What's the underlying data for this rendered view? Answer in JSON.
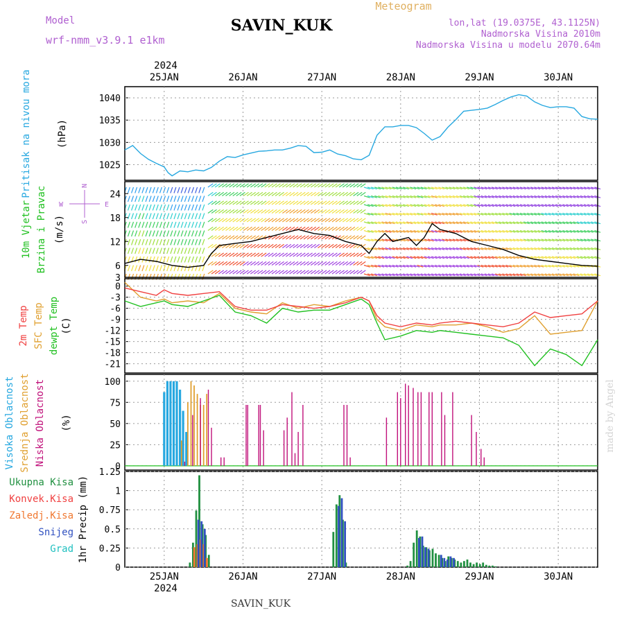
{
  "header": {
    "model_label": "Model",
    "model_name": "wrf-nmm_v3.9.1  e1km",
    "station": "SAVIN_KUK",
    "meteogram": "Meteogram",
    "lonlat": "lon,lat (19.0375E, 43.1125N)",
    "altitude": "Nadmorska Visina 2010m",
    "model_altitude": "Nadmorska Visina u modelu 2070.64m",
    "year": "2024",
    "footer_station": "SAVIN_KUK",
    "credit": "made by Angel"
  },
  "colors": {
    "pressure": "#27a8e0",
    "t2m": "#f04040",
    "tsfc": "#e0a030",
    "dewpt": "#20c020",
    "high_cloud": "#27a8e0",
    "mid_cloud": "#e0a030",
    "low_cloud": "#c0107a",
    "total_precip": "#209040",
    "conv_precip": "#f04040",
    "frz_precip": "#f07830",
    "snow": "#3050c0",
    "grad": "#20c0c0"
  },
  "x_axis": {
    "day_labels": [
      "25JAN",
      "26JAN",
      "27JAN",
      "28JAN",
      "29JAN",
      "30JAN"
    ]
  },
  "panels": {
    "pressure": {
      "label_main": "Pritisak na nivou mora",
      "unit": "(hPa)",
      "ticks": [
        "1025",
        "1030",
        "1035",
        "1040"
      ]
    },
    "wind": {
      "label1": "10m Vjetar",
      "label2": "Brzina i Pravac",
      "unit": "(m/s)",
      "ticks": [
        "3",
        "6",
        "12",
        "18",
        "24"
      ],
      "compass_n": "N",
      "compass_s": "S",
      "compass_w": "W",
      "compass_e": "E"
    },
    "temp": {
      "label1": "2m Temp",
      "label2": "SFC Temp",
      "label3": "dewpt Temp",
      "unit": "(C)",
      "ticks": [
        "0",
        "-3",
        "-6",
        "-9",
        "-12",
        "-15",
        "-18",
        "-21"
      ]
    },
    "cloud": {
      "label1": "Visoka Oblacnost",
      "label2": "Srednja Oblacnost",
      "label3": "Niska Oblacnost",
      "unit": "(%)",
      "ticks": [
        "0",
        "25",
        "50",
        "75",
        "100"
      ]
    },
    "precip": {
      "legend": [
        "Ukupna Kisa",
        "Konvek.Kisa",
        "Zaledj.Kisa",
        "Snijeg",
        "Grad"
      ],
      "unit": "1hr Precip (mm)",
      "ticks": [
        "0",
        "0.25",
        "0.5",
        "0.75",
        "1",
        "1.25"
      ]
    }
  },
  "chart_data": [
    {
      "type": "line",
      "title": "Pritisak na nivou mora",
      "ylabel": "(hPa)",
      "ylim": [
        1021.5,
        1042.5
      ],
      "x_unit": "days from 24JAN 12UTC",
      "series": [
        {
          "name": "Pritisak na nivou mora",
          "x": [
            0,
            0.1,
            0.2,
            0.3,
            0.4,
            0.5,
            0.55,
            0.6,
            0.7,
            0.8,
            0.9,
            1.0,
            1.1,
            1.2,
            1.3,
            1.4,
            1.5,
            1.6,
            1.7,
            1.8,
            1.9,
            2.0,
            2.1,
            2.2,
            2.3,
            2.4,
            2.5,
            2.6,
            2.7,
            2.8,
            2.9,
            3.0,
            3.1,
            3.2,
            3.3,
            3.4,
            3.5,
            3.6,
            3.7,
            3.8,
            3.9,
            4.0,
            4.1,
            4.2,
            4.3,
            4.4,
            4.5,
            4.6,
            4.7,
            4.8,
            4.9,
            5.0,
            5.1,
            5.2,
            5.3,
            5.4,
            5.5,
            5.6,
            5.7,
            5.8,
            5.9,
            6.0
          ],
          "values": [
            1028.3,
            1029.3,
            1027.5,
            1026.2,
            1025.3,
            1024.5,
            1023.2,
            1022.5,
            1023.6,
            1023.4,
            1023.8,
            1023.6,
            1024.4,
            1025.8,
            1026.8,
            1026.6,
            1027.2,
            1027.6,
            1028.0,
            1028.1,
            1028.3,
            1028.3,
            1028.7,
            1029.3,
            1029.1,
            1027.7,
            1027.8,
            1028.3,
            1027.4,
            1027.0,
            1026.3,
            1026.1,
            1027.1,
            1031.6,
            1033.5,
            1033.5,
            1033.8,
            1033.8,
            1033.3,
            1032.0,
            1030.5,
            1031.3,
            1033.4,
            1035.1,
            1037.0,
            1037.2,
            1037.4,
            1037.7,
            1038.5,
            1039.4,
            1040.2,
            1040.7,
            1040.4,
            1039.1,
            1038.3,
            1037.8,
            1038.0,
            1038.0,
            1037.7,
            1035.8,
            1035.3,
            1035.2
          ]
        }
      ]
    },
    {
      "type": "line",
      "title": "10m Vjetar Brzina i Pravac",
      "ylabel": "(m/s)",
      "ylim": [
        3,
        27
      ],
      "x_unit": "days from 24JAN 12UTC",
      "series": [
        {
          "name": "Brzina",
          "x": [
            0,
            0.2,
            0.4,
            0.6,
            0.8,
            1.0,
            1.1,
            1.2,
            1.4,
            1.6,
            1.8,
            2.0,
            2.2,
            2.4,
            2.6,
            2.8,
            3.0,
            3.1,
            3.2,
            3.3,
            3.4,
            3.6,
            3.7,
            3.8,
            3.9,
            4.0,
            4.2,
            4.4,
            4.6,
            4.8,
            5.0,
            5.2,
            5.4,
            5.6,
            5.8,
            6.0
          ],
          "values": [
            6.5,
            7.5,
            7.0,
            6.0,
            5.5,
            6.0,
            9.0,
            11.0,
            11.5,
            12.0,
            13.0,
            14.0,
            15.0,
            14.0,
            13.5,
            12.0,
            11.0,
            9.0,
            12.0,
            14.0,
            12.0,
            13.0,
            11.0,
            13.0,
            16.5,
            15.0,
            14.0,
            12.0,
            11.0,
            10.0,
            8.5,
            7.5,
            7.0,
            6.5,
            6.0,
            5.8
          ]
        }
      ]
    },
    {
      "type": "line",
      "title": "Temp",
      "ylabel": "(C)",
      "ylim": [
        -23.5,
        2
      ],
      "x_unit": "days from 24JAN 12UTC",
      "series": [
        {
          "name": "2m Temp",
          "x": [
            0,
            0.2,
            0.4,
            0.5,
            0.6,
            0.8,
            1.0,
            1.2,
            1.4,
            1.6,
            1.8,
            2.0,
            2.2,
            2.4,
            2.6,
            2.8,
            3.0,
            3.1,
            3.2,
            3.3,
            3.5,
            3.7,
            3.9,
            4.0,
            4.2,
            4.4,
            4.6,
            4.8,
            5.0,
            5.2,
            5.4,
            5.6,
            5.8,
            6.0
          ],
          "values": [
            -0.5,
            -1.5,
            -2.5,
            -1.0,
            -2.0,
            -2.5,
            -2.0,
            -1.5,
            -5.5,
            -6.5,
            -6.5,
            -5.0,
            -5.5,
            -6.0,
            -5.5,
            -4.5,
            -3.0,
            -4.0,
            -8.0,
            -10.0,
            -11.0,
            -10.0,
            -10.5,
            -10.0,
            -9.5,
            -10.0,
            -10.5,
            -11.0,
            -10.0,
            -7.0,
            -8.5,
            -8.0,
            -7.5,
            -4.0
          ]
        },
        {
          "name": "SFC Temp",
          "x": [
            0,
            0.2,
            0.4,
            0.5,
            0.6,
            0.8,
            1.0,
            1.2,
            1.4,
            1.6,
            1.8,
            2.0,
            2.2,
            2.4,
            2.6,
            2.8,
            3.0,
            3.1,
            3.2,
            3.3,
            3.5,
            3.7,
            3.9,
            4.0,
            4.2,
            4.4,
            4.6,
            4.8,
            5.0,
            5.2,
            5.4,
            5.6,
            5.8,
            6.0
          ],
          "values": [
            1.0,
            -3.0,
            -4.0,
            -3.5,
            -4.5,
            -4.0,
            -4.5,
            -2.0,
            -6.0,
            -7.0,
            -7.5,
            -4.5,
            -6.0,
            -5.0,
            -5.5,
            -4.0,
            -3.0,
            -4.0,
            -9.0,
            -11.0,
            -12.0,
            -10.5,
            -11.0,
            -10.5,
            -10.5,
            -10.0,
            -11.0,
            -12.5,
            -11.5,
            -8.0,
            -13.0,
            -12.5,
            -12.0,
            -4.0
          ]
        },
        {
          "name": "dewpt Temp",
          "x": [
            0,
            0.2,
            0.4,
            0.5,
            0.6,
            0.8,
            1.0,
            1.2,
            1.4,
            1.6,
            1.8,
            2.0,
            2.2,
            2.4,
            2.6,
            2.8,
            3.0,
            3.1,
            3.2,
            3.3,
            3.5,
            3.7,
            3.9,
            4.0,
            4.2,
            4.4,
            4.6,
            4.8,
            5.0,
            5.2,
            5.4,
            5.6,
            5.8,
            6.0
          ],
          "values": [
            -4.0,
            -5.5,
            -4.5,
            -4.0,
            -5.0,
            -5.5,
            -4.0,
            -2.5,
            -7.0,
            -8.0,
            -10.0,
            -6.0,
            -7.0,
            -6.5,
            -6.5,
            -5.0,
            -3.5,
            -5.0,
            -10.0,
            -14.5,
            -13.5,
            -12.0,
            -12.5,
            -12.0,
            -12.5,
            -13.0,
            -13.5,
            -14.0,
            -16.0,
            -21.5,
            -17.0,
            -18.5,
            -21.5,
            -14.5
          ]
        }
      ]
    },
    {
      "type": "bar",
      "title": "Oblacnost",
      "ylabel": "(%)",
      "ylim": [
        0,
        100
      ],
      "x_unit": "days from 24JAN 12UTC",
      "series": [
        {
          "name": "Visoka Oblacnost",
          "x": [
            0.5,
            0.54,
            0.58,
            0.62,
            0.66,
            0.7,
            0.74,
            0.78
          ],
          "values": [
            87,
            100,
            100,
            100,
            100,
            90,
            65,
            40
          ]
        },
        {
          "name": "Srednja Oblacnost",
          "x": [
            0.72,
            0.8,
            0.84,
            0.88,
            0.92,
            0.96,
            1.0,
            1.04
          ],
          "values": [
            30,
            75,
            100,
            95,
            85,
            72,
            72,
            85
          ]
        },
        {
          "name": "Niska Oblacnost",
          "x": [
            0.76,
            0.86,
            0.96,
            1.06,
            1.1,
            1.22,
            1.26,
            1.54,
            1.56,
            1.7,
            1.72,
            1.76,
            2.02,
            2.06,
            2.12,
            2.16,
            2.2,
            2.26,
            2.78,
            2.82,
            2.86,
            3.32,
            3.46,
            3.5,
            3.56,
            3.6,
            3.66,
            3.72,
            3.76,
            3.86,
            3.9,
            4.02,
            4.06,
            4.16,
            4.4,
            4.46,
            4.52,
            4.56
          ],
          "values": [
            5,
            60,
            80,
            90,
            45,
            10,
            10,
            72,
            72,
            72,
            72,
            42,
            42,
            57,
            87,
            15,
            40,
            72,
            72,
            72,
            10,
            57,
            87,
            80,
            97,
            95,
            92,
            87,
            87,
            87,
            87,
            87,
            60,
            87,
            60,
            40,
            20,
            10
          ]
        }
      ]
    },
    {
      "type": "bar",
      "title": "1hr Precip",
      "ylabel": "1hr Precip (mm)",
      "ylim": [
        0,
        1.25
      ],
      "x_unit": "days from 24JAN 12UTC",
      "series": [
        {
          "name": "Ukupna Kisa",
          "x": [
            0.84,
            0.88,
            0.92,
            0.96,
            1.0,
            1.04,
            1.08,
            2.66,
            2.7,
            2.74,
            2.78,
            2.82,
            3.6,
            3.64,
            3.68,
            3.72,
            3.76,
            3.8,
            3.84,
            3.88,
            3.92,
            3.96,
            4.0,
            4.04,
            4.08,
            4.12,
            4.16,
            4.2,
            4.24,
            4.28,
            4.32,
            4.36,
            4.4,
            4.44,
            4.48,
            4.52,
            4.56,
            4.6,
            4.64,
            4.68,
            4.72
          ],
          "values": [
            0.06,
            0.32,
            0.74,
            1.2,
            0.56,
            0.42,
            0.16,
            0.46,
            0.82,
            0.94,
            0.62,
            0.06,
            0.02,
            0.08,
            0.32,
            0.48,
            0.4,
            0.28,
            0.26,
            0.22,
            0.24,
            0.18,
            0.16,
            0.12,
            0.08,
            0.14,
            0.12,
            0.1,
            0.08,
            0.06,
            0.08,
            0.1,
            0.06,
            0.04,
            0.06,
            0.04,
            0.06,
            0.03,
            0.02,
            0.02,
            0.01
          ]
        },
        {
          "name": "Konvek.Kisa",
          "x": [
            0.92,
            0.96,
            1.0
          ],
          "values": [
            0.1,
            0.22,
            0.12
          ]
        },
        {
          "name": "Zaledj.Kisa",
          "x": [
            0.88,
            0.92,
            0.96,
            1.0,
            1.04
          ],
          "values": [
            0.26,
            0.3,
            0.36,
            0.3,
            0.12
          ]
        },
        {
          "name": "Snijeg",
          "x": [
            0.92,
            0.96,
            1.0,
            2.7,
            2.74,
            2.78,
            3.72,
            3.76,
            3.8,
            3.84,
            4.0,
            4.04,
            4.08,
            4.12,
            4.16
          ],
          "values": [
            0.62,
            0.6,
            0.5,
            0.8,
            0.9,
            0.6,
            0.38,
            0.4,
            0.26,
            0.24,
            0.16,
            0.12,
            0.1,
            0.14,
            0.12
          ]
        },
        {
          "name": "Grad",
          "x": [],
          "values": []
        }
      ]
    }
  ]
}
